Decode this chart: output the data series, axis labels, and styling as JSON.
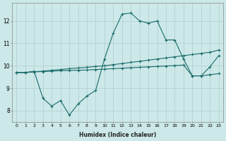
{
  "xlabel": "Humidex (Indice chaleur)",
  "background_color": "#cce8e8",
  "line_color": "#1a6b6b",
  "grid_color": "#b0cccc",
  "xlim": [
    -0.5,
    23.5
  ],
  "ylim": [
    7.5,
    12.8
  ],
  "yticks": [
    8,
    9,
    10,
    11,
    12
  ],
  "xticks": [
    0,
    1,
    2,
    3,
    4,
    5,
    6,
    7,
    8,
    9,
    10,
    11,
    12,
    13,
    14,
    15,
    16,
    17,
    18,
    19,
    20,
    21,
    22,
    23
  ],
  "line1_x": [
    0,
    1,
    2,
    3,
    4,
    5,
    6,
    7,
    8,
    9,
    10,
    11,
    12,
    13,
    14,
    15,
    16,
    17,
    18,
    19,
    20,
    21,
    22,
    23
  ],
  "line1_y": [
    9.7,
    9.7,
    9.75,
    8.55,
    8.2,
    8.45,
    7.8,
    8.3,
    8.65,
    8.9,
    10.3,
    11.45,
    12.3,
    12.35,
    12.0,
    11.9,
    12.0,
    11.15,
    11.15,
    10.3,
    9.55,
    9.55,
    9.95,
    10.45
  ],
  "line2_x": [
    0,
    1,
    2,
    3,
    4,
    5,
    6,
    7,
    8,
    9,
    10,
    11,
    12,
    13,
    14,
    15,
    16,
    17,
    18,
    19,
    20,
    21,
    22,
    23
  ],
  "line2_y": [
    9.7,
    9.7,
    9.73,
    9.74,
    9.76,
    9.78,
    9.79,
    9.8,
    9.81,
    9.83,
    9.85,
    9.87,
    9.89,
    9.91,
    9.93,
    9.95,
    9.97,
    9.99,
    10.01,
    10.03,
    9.55,
    9.55,
    9.6,
    9.65
  ],
  "line3_x": [
    0,
    1,
    2,
    3,
    4,
    5,
    6,
    7,
    8,
    9,
    10,
    11,
    12,
    13,
    14,
    15,
    16,
    17,
    18,
    19,
    20,
    21,
    22,
    23
  ],
  "line3_y": [
    9.7,
    9.7,
    9.73,
    9.76,
    9.8,
    9.83,
    9.87,
    9.9,
    9.93,
    9.97,
    10.0,
    10.05,
    10.1,
    10.15,
    10.2,
    10.25,
    10.3,
    10.35,
    10.4,
    10.45,
    10.5,
    10.55,
    10.6,
    10.7
  ]
}
